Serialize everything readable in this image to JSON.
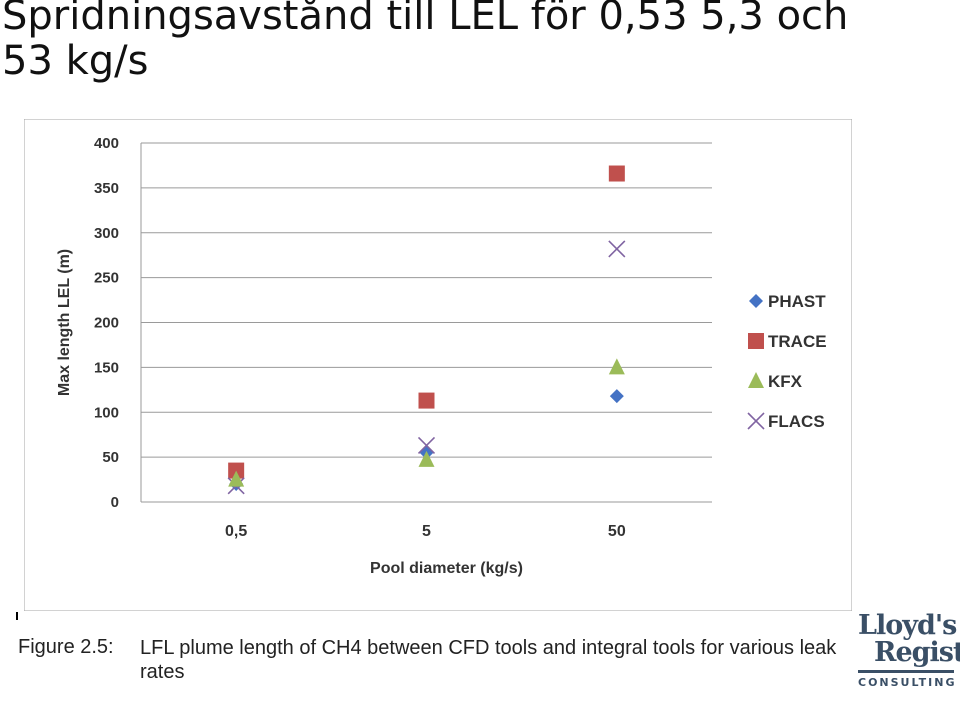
{
  "slide": {
    "title": "Spridningsavstånd till LEL för 0,53 5,3 och 53 kg/s"
  },
  "figure_caption": {
    "label": "Figure 2.5:",
    "text": "LFL plume length of CH4 between CFD tools and integral tools for various leak rates"
  },
  "logo": {
    "line1": "Lloyd's",
    "line2": "Register",
    "sub": "CONSULTING"
  },
  "chart_data": {
    "type": "scatter",
    "categories": [
      "0,5",
      "5",
      "50"
    ],
    "xlabel": "Pool diameter (kg/s)",
    "ylabel": "Max length LEL (m)",
    "ylim": [
      0,
      400
    ],
    "yticks": [
      0,
      50,
      100,
      150,
      200,
      250,
      300,
      350,
      400
    ],
    "grid": true,
    "legend_position": "right",
    "series": [
      {
        "name": "PHAST",
        "marker": "diamond",
        "color": "#4472c4",
        "values": [
          20,
          55,
          118
        ]
      },
      {
        "name": "TRACE",
        "marker": "square",
        "color": "#c0504d",
        "values": [
          35,
          113,
          366
        ]
      },
      {
        "name": "KFX",
        "marker": "triangle",
        "color": "#9bbb59",
        "values": [
          25,
          47,
          150
        ]
      },
      {
        "name": "FLACS",
        "marker": "x",
        "color": "#8064a2",
        "values": [
          18,
          63,
          282
        ]
      }
    ]
  }
}
